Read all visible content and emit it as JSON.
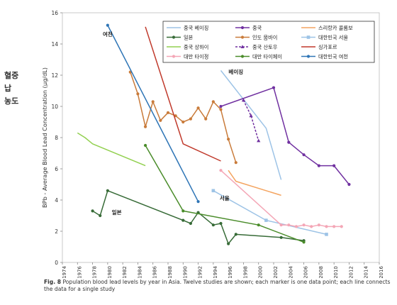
{
  "side_label": [
    "혈중",
    "납",
    "농도"
  ],
  "caption": {
    "fig": "Fig. 8",
    "text": "Population blood lead levels by year in Asia. Twelve studies are shown; each marker is one data point; each line connects the data for a single study"
  },
  "chart_data": {
    "type": "line",
    "ylabel": "BPb - Average Blood Lead Concentration (μg/dL)",
    "xlim": [
      1974,
      2016
    ],
    "ylim": [
      0,
      16
    ],
    "xticks": [
      1974,
      1976,
      1978,
      1980,
      1982,
      1984,
      1986,
      1988,
      1990,
      1992,
      1994,
      1996,
      1998,
      2000,
      2002,
      2004,
      2006,
      2008,
      2010,
      2012,
      2014,
      2016
    ],
    "yticks": [
      0,
      2,
      4,
      6,
      8,
      10,
      12,
      14,
      16
    ],
    "legend_position": "top-right",
    "annotations": [
      {
        "text": "여천",
        "x": 1980,
        "y": 14.5
      },
      {
        "text": "베이징",
        "x": 1997,
        "y": 12.1
      },
      {
        "text": "서울",
        "x": 1995.5,
        "y": 4.0
      },
      {
        "text": "일본",
        "x": 1981.2,
        "y": 3.1
      }
    ],
    "series": [
      {
        "name": "중국 베이징",
        "color": "#9dc3e6",
        "marker": "none",
        "dashed": false,
        "points": [
          [
            1995,
            12.3
          ],
          [
            2001,
            8.6
          ],
          [
            2003,
            5.3
          ]
        ]
      },
      {
        "name": "중국",
        "color": "#7030a0",
        "marker": "dot",
        "dashed": false,
        "points": [
          [
            1995,
            10.0
          ],
          [
            2002,
            11.2
          ],
          [
            2004,
            7.7
          ],
          [
            2006,
            6.9
          ],
          [
            2008,
            6.2
          ],
          [
            2010,
            6.2
          ],
          [
            2012,
            5.0
          ]
        ]
      },
      {
        "name": "스리랑카 콜롬보",
        "color": "#f4a460",
        "marker": "none",
        "dashed": false,
        "points": [
          [
            1996,
            5.9
          ],
          [
            1997,
            5.2
          ],
          [
            2003,
            4.3
          ]
        ]
      },
      {
        "name": "일본",
        "color": "#376b37",
        "marker": "dot",
        "dashed": false,
        "points": [
          [
            1978,
            3.3
          ],
          [
            1979,
            3.0
          ],
          [
            1980,
            4.6
          ],
          [
            1990,
            2.7
          ],
          [
            1991,
            2.5
          ],
          [
            1992,
            3.2
          ],
          [
            1994,
            2.4
          ],
          [
            1995,
            2.5
          ],
          [
            1996,
            1.2
          ],
          [
            1997,
            1.8
          ],
          [
            2003,
            1.6
          ],
          [
            2006,
            1.4
          ]
        ]
      },
      {
        "name": "인도 뭄바이",
        "color": "#c97b3a",
        "marker": "dot",
        "dashed": false,
        "points": [
          [
            1983,
            12.2
          ],
          [
            1984,
            10.8
          ],
          [
            1985,
            8.7
          ],
          [
            1986,
            10.3
          ],
          [
            1987,
            9.1
          ],
          [
            1988,
            9.6
          ],
          [
            1989,
            9.4
          ],
          [
            1990,
            9.0
          ],
          [
            1991,
            9.2
          ],
          [
            1992,
            9.9
          ],
          [
            1993,
            9.2
          ],
          [
            1994,
            10.3
          ],
          [
            1995,
            9.8
          ],
          [
            1996,
            7.9
          ],
          [
            1997,
            6.4
          ]
        ]
      },
      {
        "name": "대한민국 서울",
        "color": "#9dc3e6",
        "marker": "square",
        "dashed": false,
        "points": [
          [
            1994,
            4.6
          ],
          [
            2001,
            2.7
          ],
          [
            2009,
            1.8
          ]
        ]
      },
      {
        "name": "중국 상하이",
        "color": "#92d050",
        "marker": "none",
        "dashed": false,
        "points": [
          [
            1976,
            8.3
          ],
          [
            1977,
            8.0
          ],
          [
            1978,
            7.6
          ],
          [
            1985,
            6.2
          ]
        ]
      },
      {
        "name": "중국 산토우",
        "color": "#7030a0",
        "marker": "triangle",
        "dashed": true,
        "points": [
          [
            1998,
            10.4
          ],
          [
            1999,
            9.4
          ],
          [
            2000,
            7.8
          ]
        ]
      },
      {
        "name": "싱가포르",
        "color": "#c0392b",
        "marker": "none",
        "dashed": false,
        "points": [
          [
            1985,
            15.1
          ],
          [
            1990,
            7.6
          ],
          [
            1995,
            6.5
          ]
        ]
      },
      {
        "name": "대만 타이정",
        "color": "#f4a6b6",
        "marker": "dot",
        "dashed": false,
        "points": [
          [
            1995,
            5.9
          ],
          [
            2003,
            2.4
          ],
          [
            2004,
            2.4
          ],
          [
            2005,
            2.3
          ],
          [
            2006,
            2.4
          ],
          [
            2007,
            2.3
          ],
          [
            2008,
            2.4
          ],
          [
            2009,
            2.3
          ],
          [
            2010,
            2.3
          ],
          [
            2011,
            2.3
          ]
        ]
      },
      {
        "name": "대만 타이페이",
        "color": "#4a8c2a",
        "marker": "dot",
        "dashed": false,
        "points": [
          [
            1985,
            7.5
          ],
          [
            1990,
            3.3
          ],
          [
            2000,
            2.4
          ],
          [
            2006,
            1.3
          ]
        ]
      },
      {
        "name": "대한민국 여천",
        "color": "#2e75b6",
        "marker": "dot",
        "dashed": false,
        "points": [
          [
            1980,
            15.2
          ],
          [
            1992,
            3.9
          ]
        ]
      }
    ]
  }
}
